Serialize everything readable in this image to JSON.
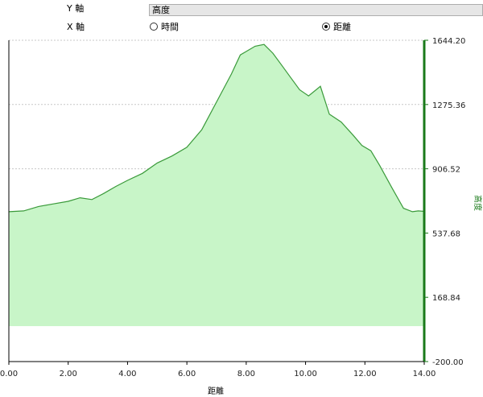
{
  "controls": {
    "y_axis_label": "Y 軸",
    "y_axis_value": "高度",
    "x_axis_label": "X 軸",
    "x_options": [
      {
        "label": "時間",
        "selected": false
      },
      {
        "label": "距離",
        "selected": true
      }
    ]
  },
  "chart_data": {
    "type": "area",
    "xlabel": "距離",
    "ylabel": "高度",
    "xlim": [
      0,
      14
    ],
    "ylim": [
      -200,
      1644.2
    ],
    "x_ticks": [
      "0.00",
      "2.00",
      "4.00",
      "6.00",
      "8.00",
      "10.00",
      "12.00",
      "14.00"
    ],
    "y_ticks": [
      "1644.20",
      "1275.36",
      "906.52",
      "537.68",
      "168.84",
      "-200.00"
    ],
    "colors": {
      "line": "#3a9a3a",
      "fill": "#c8f5c8",
      "axis_right": "#1a7a1a"
    },
    "x": [
      0,
      0.5,
      1.0,
      1.5,
      2.0,
      2.4,
      2.8,
      3.2,
      3.6,
      4.0,
      4.5,
      5.0,
      5.5,
      6.0,
      6.5,
      7.0,
      7.5,
      7.8,
      8.0,
      8.3,
      8.6,
      8.9,
      9.2,
      9.5,
      9.8,
      10.1,
      10.5,
      10.8,
      11.2,
      11.6,
      11.9,
      12.2,
      12.5,
      12.9,
      13.3,
      13.6,
      13.8,
      14.0
    ],
    "y": [
      660,
      665,
      690,
      705,
      720,
      740,
      730,
      765,
      805,
      840,
      880,
      940,
      980,
      1030,
      1130,
      1290,
      1450,
      1560,
      1580,
      1610,
      1620,
      1570,
      1500,
      1430,
      1360,
      1325,
      1380,
      1220,
      1175,
      1100,
      1040,
      1010,
      925,
      800,
      680,
      660,
      665,
      662
    ]
  }
}
